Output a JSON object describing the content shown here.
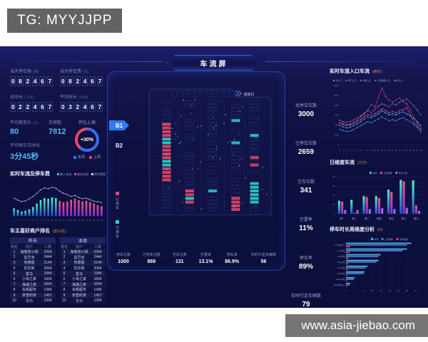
{
  "watermark": "TG: MYYJJPP",
  "website": "www.asia-jiebao.com",
  "header": {
    "title": "车流屏"
  },
  "counters": [
    {
      "label": "当天停车辆",
      "unit": "(辆)",
      "digits": "082467"
    },
    {
      "label": "当天停车费",
      "unit": "(元)",
      "digits": "082467"
    },
    {
      "label": "总时长",
      "unit": "(小时)",
      "digits": "022467"
    },
    {
      "label": "平均时长",
      "unit": "(分钟)",
      "digits": "032467"
    }
  ],
  "kpis": {
    "avg_price_label": "平均客单价",
    "avg_price_unit": "(元)",
    "avg_price": "80",
    "plate_label": "车牌数",
    "plate": "7812",
    "gauge_label": "环比上周",
    "gauge_value": "+30%",
    "gauge_legend": [
      {
        "label": "本周",
        "color": "#3a6df0"
      },
      {
        "label": "上周",
        "color": "#e8476a"
      }
    ],
    "avg_per_spot_label": "平均每车位时长",
    "avg_per_spot": "3分45秒"
  },
  "merchant_ranking": {
    "title": "车主喜好商户排名",
    "subtitle": "(前10名)",
    "headers": [
      "排名",
      "商户",
      "人数"
    ],
    "tables": [
      {
        "name": "昨天",
        "rows": [
          [
            "1",
            "海底捞火锅",
            "2204"
          ],
          [
            "2",
            "星巴克",
            "2444"
          ],
          [
            "3",
            "肯德基",
            "2144"
          ],
          [
            "4",
            "优衣库",
            "2064"
          ],
          [
            "5",
            "盒马",
            "1944"
          ],
          [
            "6",
            "小米之家",
            "1834"
          ],
          [
            "7",
            "海澜之家",
            "1604"
          ],
          [
            "8",
            "永辉超市",
            "1345"
          ],
          [
            "9",
            "奈雪的茶",
            "1457"
          ],
          [
            "10",
            "华为",
            "1204"
          ]
        ]
      },
      {
        "name": "本周",
        "rows": [
          [
            "1",
            "海底捞火锅",
            "2204"
          ],
          [
            "2",
            "星巴克",
            "2444"
          ],
          [
            "3",
            "肯德基",
            "2144"
          ],
          [
            "4",
            "优衣库",
            "2064"
          ],
          [
            "5",
            "盒马",
            "1944"
          ],
          [
            "6",
            "小米之家",
            "1834"
          ],
          [
            "7",
            "海澜之家",
            "1604"
          ],
          [
            "8",
            "永辉超市",
            "1345"
          ],
          [
            "9",
            "奈雪的茶",
            "1457"
          ],
          [
            "10",
            "华为",
            "1204"
          ]
        ]
      }
    ]
  },
  "map": {
    "floor_buttons": [
      {
        "label": "B1",
        "active": true
      },
      {
        "label": "B2",
        "active": false
      }
    ],
    "entrance_label": "进出口",
    "legend": [
      {
        "label": "已停车",
        "color": "#e8476a"
      },
      {
        "label": "可停车",
        "color": "#2ad5c9"
      }
    ],
    "stats": {
      "headers": [
        "停车位数",
        "已停车位数",
        "空车位数",
        "空置率",
        "停车率",
        "实时行走车辆数"
      ],
      "values": [
        "1000",
        "869",
        "131",
        "13.1%",
        "86.9%",
        "56"
      ]
    }
  },
  "building_stats": [
    {
      "label": "总停车位数",
      "value": "3000"
    },
    {
      "label": "已停车位数",
      "value": "2659"
    },
    {
      "label": "空车位数",
      "value": "341"
    },
    {
      "label": "空置率",
      "value": "11%"
    },
    {
      "label": "停车率",
      "value": "89%"
    },
    {
      "label": "实时行走车辆数",
      "value": "79"
    }
  ],
  "chart_data": [
    {
      "id": "realtime_flow_fee",
      "type": "combo",
      "title": "实时车流及停车费",
      "legend": [
        {
          "label": "驶入车流",
          "color": "#2ad5c9"
        },
        {
          "label": "驶出车流",
          "color": "#e8476a"
        },
        {
          "label": "停车费用",
          "color": "#c9d2f0"
        }
      ],
      "x_ticks": [
        0,
        1,
        2,
        3,
        4,
        5,
        6,
        7,
        8,
        9,
        10,
        11,
        12,
        13,
        14,
        15,
        16,
        17,
        18,
        19,
        20,
        21,
        22,
        23
      ],
      "ylim": [
        0,
        100
      ],
      "bar_values": [
        22,
        17,
        13,
        15,
        19,
        26,
        36,
        46,
        52,
        50,
        54,
        52,
        44,
        40,
        42,
        47,
        50,
        46,
        42,
        44,
        40,
        36,
        31,
        28
      ],
      "bar_split_index": 12,
      "bar_colors": [
        "#2ad5c9",
        "#e8476a"
      ],
      "line_values": [
        52,
        46,
        42,
        44,
        50,
        57,
        66,
        76,
        82,
        79,
        84,
        81,
        72,
        66,
        62,
        57,
        60,
        54,
        50,
        52,
        47,
        43,
        41,
        39
      ],
      "line_color": "#c9d2f0"
    },
    {
      "id": "entrance_flow",
      "type": "line",
      "title": "实时车道入口车流",
      "unit": "(辆次)",
      "x_ticks": [
        0,
        1,
        2,
        3,
        4,
        5,
        6,
        7,
        8,
        9,
        10,
        11,
        12,
        13,
        14,
        15,
        16,
        17,
        18,
        19,
        20,
        21,
        22,
        23
      ],
      "ylim": [
        0,
        1200
      ],
      "y_ticks": [
        0,
        200,
        400,
        600,
        800,
        1000,
        1200
      ],
      "grid": true,
      "legend_position": "top",
      "series": [
        {
          "name": "东入口",
          "color": "#4fc3f7",
          "values": [
            390,
            360,
            340,
            355,
            385,
            425,
            465,
            525,
            565,
            545,
            585,
            625,
            685,
            645,
            605,
            625,
            605,
            645,
            665,
            625,
            585,
            525,
            465,
            385
          ]
        },
        {
          "name": "南门入口",
          "color": "#e8476a",
          "values": [
            460,
            430,
            400,
            420,
            450,
            500,
            560,
            620,
            700,
            820,
            760,
            950,
            1150,
            980,
            900,
            870,
            900,
            950,
            870,
            830,
            700,
            560,
            430,
            330
          ]
        },
        {
          "name": "北侧入口",
          "color": "#5b8ff9",
          "values": [
            310,
            290,
            265,
            275,
            305,
            345,
            385,
            425,
            465,
            445,
            485,
            525,
            565,
            525,
            485,
            505,
            485,
            525,
            545,
            505,
            465,
            405,
            345,
            260
          ]
        },
        {
          "name": "上海路西入口",
          "color": "#9575cd",
          "values": [
            500,
            470,
            450,
            470,
            500,
            540,
            590,
            640,
            690,
            650,
            720,
            780,
            830,
            800,
            770,
            830,
            810,
            860,
            900,
            930,
            860,
            790,
            700,
            600
          ]
        },
        {
          "name": "西入口",
          "color": "#f06292",
          "values": [
            430,
            410,
            390,
            400,
            430,
            470,
            510,
            570,
            610,
            590,
            630,
            670,
            730,
            690,
            650,
            670,
            650,
            690,
            710,
            750,
            600,
            450,
            380,
            300
          ]
        }
      ]
    },
    {
      "id": "daily_flow",
      "type": "bar",
      "title": "日维度车流",
      "unit": "(万次)",
      "categories": [
        "周一",
        "周二",
        "周三",
        "周四",
        "周五",
        "周六",
        "周日"
      ],
      "ylim": [
        0,
        80
      ],
      "y_ticks": [
        0,
        20,
        40,
        60,
        80
      ],
      "legend_position": "top-right",
      "series": [
        {
          "name": "本周",
          "color": "#2ad5c9",
          "values": [
            28,
            30,
            38,
            38,
            52,
            73,
            72
          ]
        },
        {
          "name": "上周同期",
          "color": "#e8476a",
          "values": [
            26,
            2,
            36,
            34,
            47,
            70,
            18
          ]
        },
        {
          "name": "环比上周",
          "color": "#8d6cf5",
          "values": [
            8,
            8,
            10,
            12,
            10,
            13,
            6
          ]
        }
      ]
    },
    {
      "id": "duration_analysis",
      "type": "hbar",
      "title": "停车时长周维度分析",
      "unit": "(%)",
      "categories": [
        "1小时以下",
        "1-2小时",
        "2-3小时",
        "3-4小时",
        "4-5小时",
        "5-6小时",
        "6-12小时",
        "12小时以上"
      ],
      "xlim": [
        0,
        32
      ],
      "x_ticks": [
        0,
        4,
        8,
        12,
        16,
        20,
        24,
        28,
        32
      ],
      "legend_position": "top-right",
      "series": [
        {
          "name": "本周",
          "color": "#45c8f5",
          "values": [
            30,
            28,
            16,
            15,
            10,
            8.5,
            4,
            2
          ]
        },
        {
          "name": "上周同期",
          "color": "#5a7bd8",
          "values": [
            28,
            26,
            15,
            14,
            9,
            8,
            3.5,
            1.5
          ]
        },
        {
          "name": "去年同期",
          "color": "#e8476a",
          "values": [
            2,
            1.8,
            1.2,
            1,
            0.8,
            0.7,
            0.5,
            0.3
          ]
        }
      ]
    }
  ]
}
